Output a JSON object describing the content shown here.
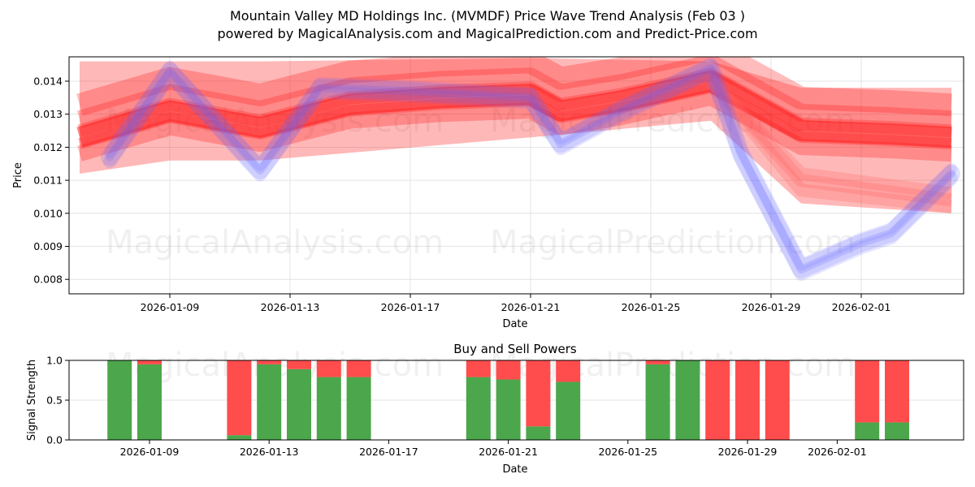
{
  "header": {
    "title": "Mountain Valley MD Holdings Inc. (MVMDF) Price Wave Trend Analysis (Feb 03 )",
    "subtitle": "powered by MagicalAnalysis.com and MagicalPrediction.com and Predict-Price.com"
  },
  "watermarks": [
    "MagicalAnalysis.com",
    "MagicalPrediction.com"
  ],
  "colors": {
    "buy": "#4ca64c",
    "sell": "#ff4c4c",
    "band_red": "#ff0000",
    "wave_blue": "#6464ff"
  },
  "chart_data": [
    {
      "type": "area",
      "title": "Price Wave Trend Analysis",
      "xlabel": "Date",
      "ylabel": "Price",
      "ylim": [
        0.00755,
        0.0147
      ],
      "yticks": [
        "0.008",
        "0.009",
        "0.010",
        "0.011",
        "0.012",
        "0.013",
        "0.014"
      ],
      "xticks": [
        "2026-01-09",
        "2026-01-13",
        "2026-01-17",
        "2026-01-21",
        "2026-01-25",
        "2026-01-29",
        "2026-02-01"
      ],
      "grid": true,
      "series": [
        {
          "name": "Red trend band (central)",
          "x": [
            "2026-01-06",
            "2026-01-09",
            "2026-01-12",
            "2026-01-15",
            "2026-01-18",
            "2026-01-21",
            "2026-01-22",
            "2026-01-24",
            "2026-01-27",
            "2026-01-30",
            "2026-02-02",
            "2026-02-04"
          ],
          "values": [
            0.0123,
            0.0131,
            0.0126,
            0.0133,
            0.0135,
            0.0136,
            0.0131,
            0.0134,
            0.014,
            0.0125,
            0.0124,
            0.0123
          ]
        },
        {
          "name": "Red trend band (upper envelope)",
          "x": [
            "2026-01-06",
            "2026-01-12",
            "2026-01-21",
            "2026-01-27",
            "2026-01-30",
            "2026-02-04"
          ],
          "values": [
            0.0146,
            0.0146,
            0.0147,
            0.0146,
            0.0138,
            0.0138
          ]
        },
        {
          "name": "Red trend band (lower envelope)",
          "x": [
            "2026-01-06",
            "2026-01-09",
            "2026-01-12",
            "2026-01-21",
            "2026-01-27",
            "2026-01-30",
            "2026-02-04"
          ],
          "values": [
            0.0112,
            0.0116,
            0.0116,
            0.0123,
            0.0128,
            0.0103,
            0.01
          ]
        },
        {
          "name": "Blue price wave",
          "x": [
            "2026-01-07",
            "2026-01-09",
            "2026-01-12",
            "2026-01-14",
            "2026-01-17",
            "2026-01-21",
            "2026-01-22",
            "2026-01-24",
            "2026-01-27",
            "2026-01-28",
            "2026-01-30",
            "2026-02-01",
            "2026-02-02",
            "2026-02-04"
          ],
          "values": [
            0.0117,
            0.0143,
            0.0113,
            0.0138,
            0.0137,
            0.0135,
            0.0121,
            0.0131,
            0.0144,
            0.0118,
            0.0083,
            0.0091,
            0.0094,
            0.0112
          ]
        }
      ]
    },
    {
      "type": "bar",
      "title": "Buy and Sell Powers",
      "xlabel": "Date",
      "ylabel": "Signal Strength",
      "ylim": [
        0.0,
        1.0
      ],
      "yticks": [
        "0.0",
        "0.5",
        "1.0"
      ],
      "xticks": [
        "2026-01-09",
        "2026-01-13",
        "2026-01-17",
        "2026-01-21",
        "2026-01-25",
        "2026-01-29",
        "2026-02-01"
      ],
      "stacked": true,
      "categories": [
        "2026-01-08",
        "2026-01-09",
        "2026-01-12",
        "2026-01-13",
        "2026-01-14",
        "2026-01-15",
        "2026-01-16",
        "2026-01-20",
        "2026-01-21",
        "2026-01-22",
        "2026-01-23",
        "2026-01-26",
        "2026-01-27",
        "2026-01-28",
        "2026-01-29",
        "2026-01-30",
        "2026-02-02",
        "2026-02-03"
      ],
      "series": [
        {
          "name": "Buy",
          "values": [
            1.0,
            0.95,
            0.06,
            0.95,
            0.89,
            0.79,
            0.79,
            0.79,
            0.76,
            0.17,
            0.73,
            0.95,
            1.0,
            0.0,
            0.0,
            0.0,
            0.22,
            0.22
          ]
        },
        {
          "name": "Sell",
          "values": [
            0.0,
            0.05,
            0.94,
            0.05,
            0.11,
            0.21,
            0.21,
            0.21,
            0.24,
            0.83,
            0.27,
            0.05,
            0.0,
            1.0,
            1.0,
            1.0,
            0.78,
            0.78
          ]
        }
      ]
    }
  ]
}
